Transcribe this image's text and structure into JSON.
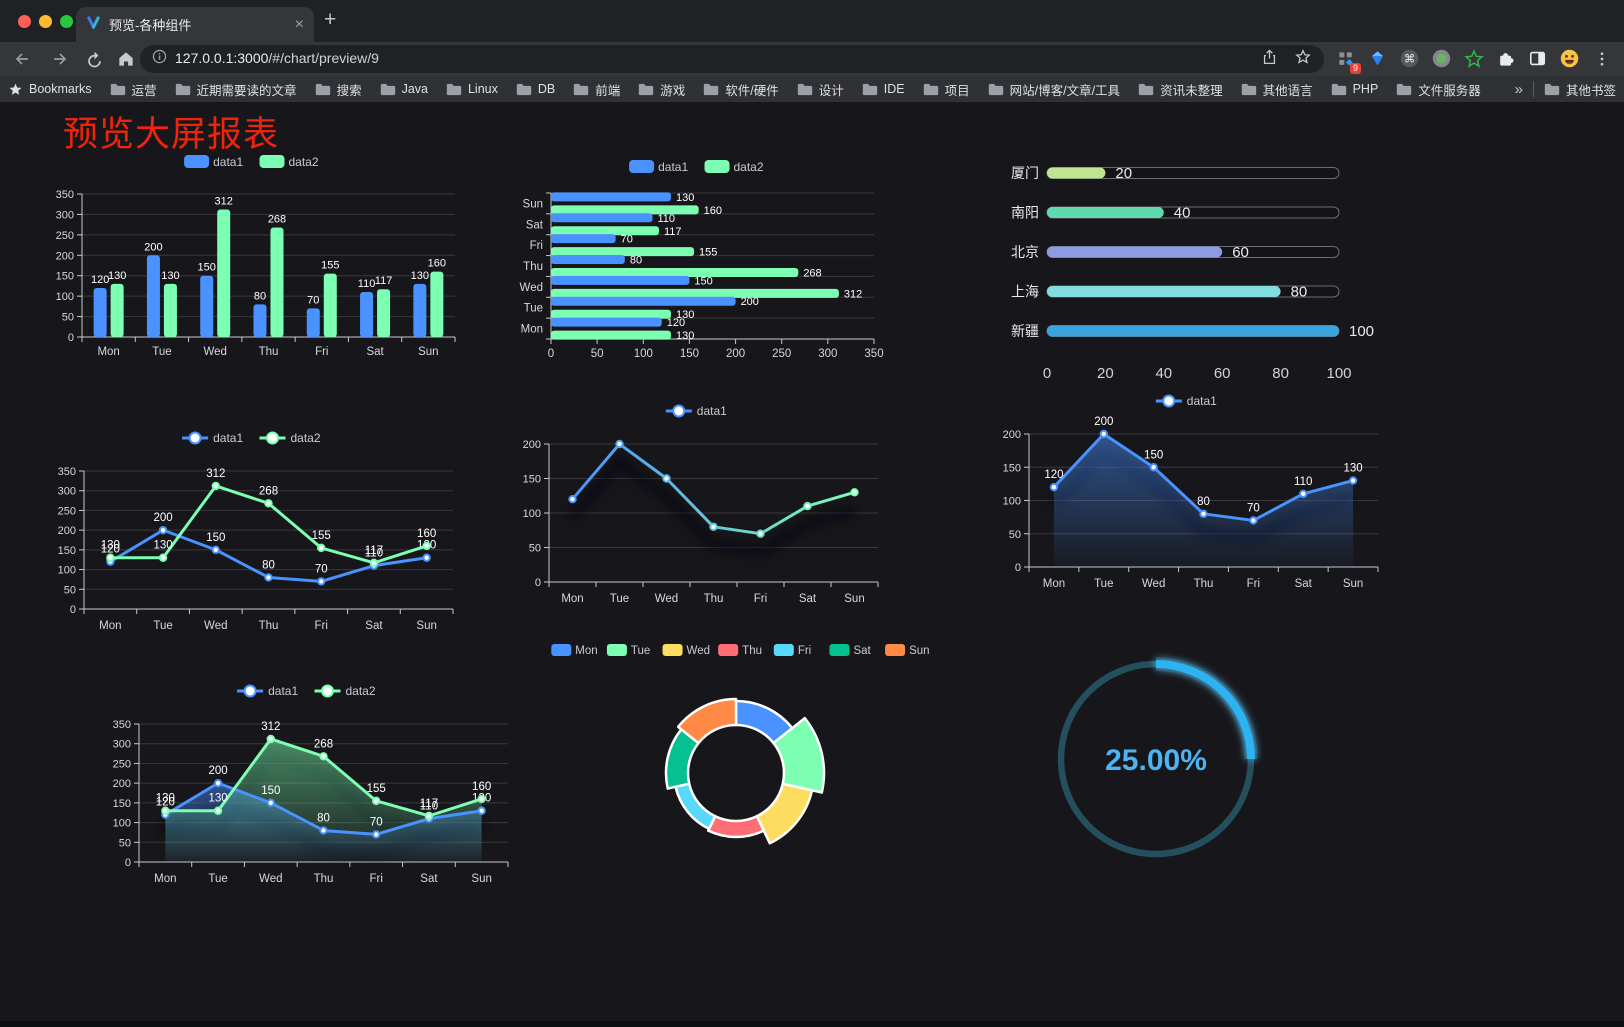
{
  "browser": {
    "traffic_lights": {
      "close": "#ff5f57",
      "minimize": "#febc2e",
      "zoom": "#28c840"
    },
    "tab": {
      "title": "预览-各种组件",
      "close_glyph": "×"
    },
    "new_tab_glyph": "+",
    "url": {
      "host": "127.0.0.1:3000",
      "path": "/#/chart/preview/9"
    },
    "extension_badge": "9",
    "bookmarks_bar": {
      "bookmarks_label": "Bookmarks",
      "folders": [
        "运营",
        "近期需要读的文章",
        "搜索",
        "Java",
        "Linux",
        "DB",
        "前端",
        "游戏",
        "软件/硬件",
        "设计",
        "IDE",
        "项目",
        "网站/博客/文章/工具",
        "资讯未整理",
        "其他语言",
        "PHP",
        "文件服务器"
      ],
      "overflow": "»",
      "other_bookmarks": "其他书签"
    }
  },
  "page": {
    "title": "预览大屏报表",
    "title_color": "#f2230d",
    "background": "#17171b"
  },
  "chart_data": [
    {
      "id": "bar-vertical",
      "type": "bar",
      "categories": [
        "Mon",
        "Tue",
        "Wed",
        "Thu",
        "Fri",
        "Sat",
        "Sun"
      ],
      "series": [
        {
          "name": "data1",
          "color": "#4992ff",
          "values": [
            120,
            200,
            150,
            80,
            70,
            110,
            130
          ]
        },
        {
          "name": "data2",
          "color": "#7cffb2",
          "values": [
            130,
            130,
            312,
            268,
            155,
            117,
            160
          ]
        }
      ],
      "ylim": [
        0,
        350
      ],
      "ytick_step": 50,
      "legend": true,
      "show_labels": true
    },
    {
      "id": "bar-horizontal",
      "type": "bar-h",
      "categories": [
        "Mon",
        "Tue",
        "Wed",
        "Thu",
        "Fri",
        "Sat",
        "Sun"
      ],
      "series": [
        {
          "name": "data1",
          "color": "#4992ff",
          "values": [
            120,
            200,
            150,
            80,
            70,
            110,
            130
          ]
        },
        {
          "name": "data2",
          "color": "#7cffb2",
          "values": [
            130,
            130,
            312,
            268,
            155,
            117,
            160
          ]
        }
      ],
      "xlim": [
        0,
        350
      ],
      "xtick_step": 50,
      "legend": true,
      "show_labels": true
    },
    {
      "id": "progress-bars",
      "type": "progress",
      "max": 100,
      "xticks": [
        0,
        20,
        40,
        60,
        80,
        100
      ],
      "items": [
        {
          "label": "厦门",
          "value": 20,
          "color": "#c0e591"
        },
        {
          "label": "南阳",
          "value": 40,
          "color": "#5fd9ad"
        },
        {
          "label": "北京",
          "value": 60,
          "color": "#8d9ce0"
        },
        {
          "label": "上海",
          "value": 80,
          "color": "#83dde0"
        },
        {
          "label": "新疆",
          "value": 100,
          "color": "#3aa5dc"
        }
      ]
    },
    {
      "id": "line-two-series",
      "type": "line",
      "categories": [
        "Mon",
        "Tue",
        "Wed",
        "Thu",
        "Fri",
        "Sat",
        "Sun"
      ],
      "series": [
        {
          "name": "data1",
          "color": "#4992ff",
          "values": [
            120,
            200,
            150,
            80,
            70,
            110,
            130
          ]
        },
        {
          "name": "data2",
          "color": "#7cffb2",
          "values": [
            130,
            130,
            312,
            268,
            155,
            117,
            160
          ]
        }
      ],
      "ylim": [
        0,
        350
      ],
      "ytick_step": 50,
      "show_labels": true
    },
    {
      "id": "line-gradient-shadow",
      "type": "line",
      "categories": [
        "Mon",
        "Tue",
        "Wed",
        "Thu",
        "Fri",
        "Sat",
        "Sun"
      ],
      "series": [
        {
          "name": "data1",
          "gradient": [
            "#4992ff",
            "#7cffb2"
          ],
          "values": [
            120,
            200,
            150,
            80,
            70,
            110,
            130
          ],
          "shadow": true
        }
      ],
      "ylim": [
        0,
        200
      ],
      "ytick_step": 50,
      "show_labels": false
    },
    {
      "id": "area-single",
      "type": "line",
      "categories": [
        "Mon",
        "Tue",
        "Wed",
        "Thu",
        "Fri",
        "Sat",
        "Sun"
      ],
      "series": [
        {
          "name": "data1",
          "color": "#4992ff",
          "values": [
            120,
            200,
            150,
            80,
            70,
            110,
            130
          ],
          "area": true,
          "shadow": true
        }
      ],
      "ylim": [
        0,
        200
      ],
      "ytick_step": 50,
      "show_labels": true
    },
    {
      "id": "area-two-series",
      "type": "line",
      "categories": [
        "Mon",
        "Tue",
        "Wed",
        "Thu",
        "Fri",
        "Sat",
        "Sun"
      ],
      "series": [
        {
          "name": "data1",
          "color": "#4992ff",
          "values": [
            120,
            200,
            150,
            80,
            70,
            110,
            130
          ],
          "area": true,
          "shadow": true
        },
        {
          "name": "data2",
          "color": "#7cffb2",
          "values": [
            130,
            130,
            312,
            268,
            155,
            117,
            160
          ],
          "area": true,
          "shadow": true
        }
      ],
      "ylim": [
        0,
        350
      ],
      "ytick_step": 50,
      "show_labels": true
    },
    {
      "id": "rose-pie",
      "type": "pie",
      "items": [
        {
          "label": "Mon",
          "value": 120,
          "color": "#4992ff"
        },
        {
          "label": "Tue",
          "value": 200,
          "color": "#7cffb2"
        },
        {
          "label": "Wed",
          "value": 150,
          "color": "#fddd60"
        },
        {
          "label": "Thu",
          "value": 80,
          "color": "#ff6e76"
        },
        {
          "label": "Fri",
          "value": 70,
          "color": "#58d9f9"
        },
        {
          "label": "Sat",
          "value": 110,
          "color": "#05c091"
        },
        {
          "label": "Sun",
          "value": 130,
          "color": "#ff8a45"
        }
      ]
    },
    {
      "id": "gauge-progress",
      "type": "gauge",
      "percent": 25,
      "value_label": "25.00%",
      "color": "#2fb3f2",
      "track_color": "#24505e",
      "text_color": "#4db3f2"
    }
  ]
}
